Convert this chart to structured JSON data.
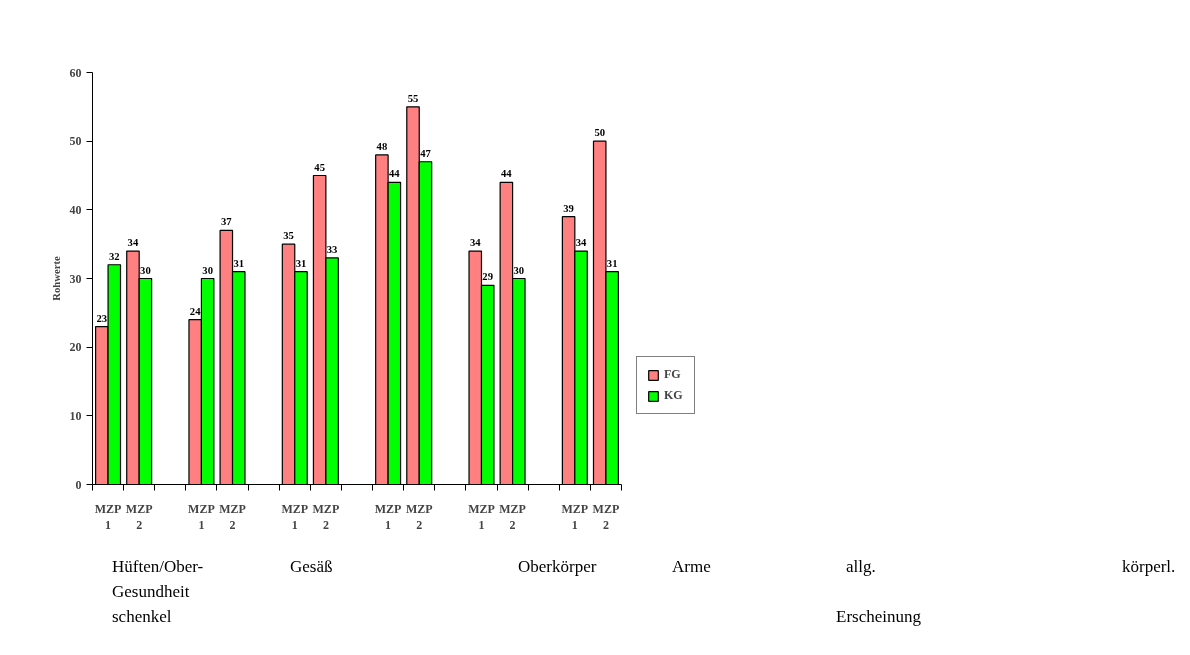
{
  "chart_data": {
    "type": "bar",
    "ylabel": "Rohwerte",
    "categories": [
      "MZP\n1",
      "MZP\n2",
      null,
      "MZP\n1",
      "MZP\n2",
      null,
      "MZP\n1",
      "MZP\n2",
      null,
      "MZP\n1",
      "MZP\n2",
      null,
      "MZP\n1",
      "MZP\n2",
      null,
      "MZP\n1",
      "MZP\n2"
    ],
    "series": [
      {
        "name": "FG",
        "color": "#ff8080",
        "values": [
          23,
          34,
          null,
          24,
          37,
          null,
          35,
          45,
          null,
          48,
          55,
          null,
          34,
          44,
          null,
          39,
          50
        ]
      },
      {
        "name": "KG",
        "color": "#00ff00",
        "values": [
          32,
          30,
          null,
          30,
          31,
          null,
          31,
          33,
          null,
          44,
          47,
          null,
          29,
          30,
          null,
          34,
          31
        ]
      }
    ],
    "ylim": [
      0,
      60
    ],
    "yticks": [
      0,
      10,
      20,
      30,
      40,
      50,
      60
    ],
    "data_labels": true,
    "grid": false,
    "legend": "right",
    "annotations": [
      "Hüften/Ober-",
      "Gesäß",
      "Oberkörper",
      "Arme",
      "allg.",
      "körperl.",
      "Gesundheit",
      "schenkel",
      "Erscheinung"
    ]
  }
}
